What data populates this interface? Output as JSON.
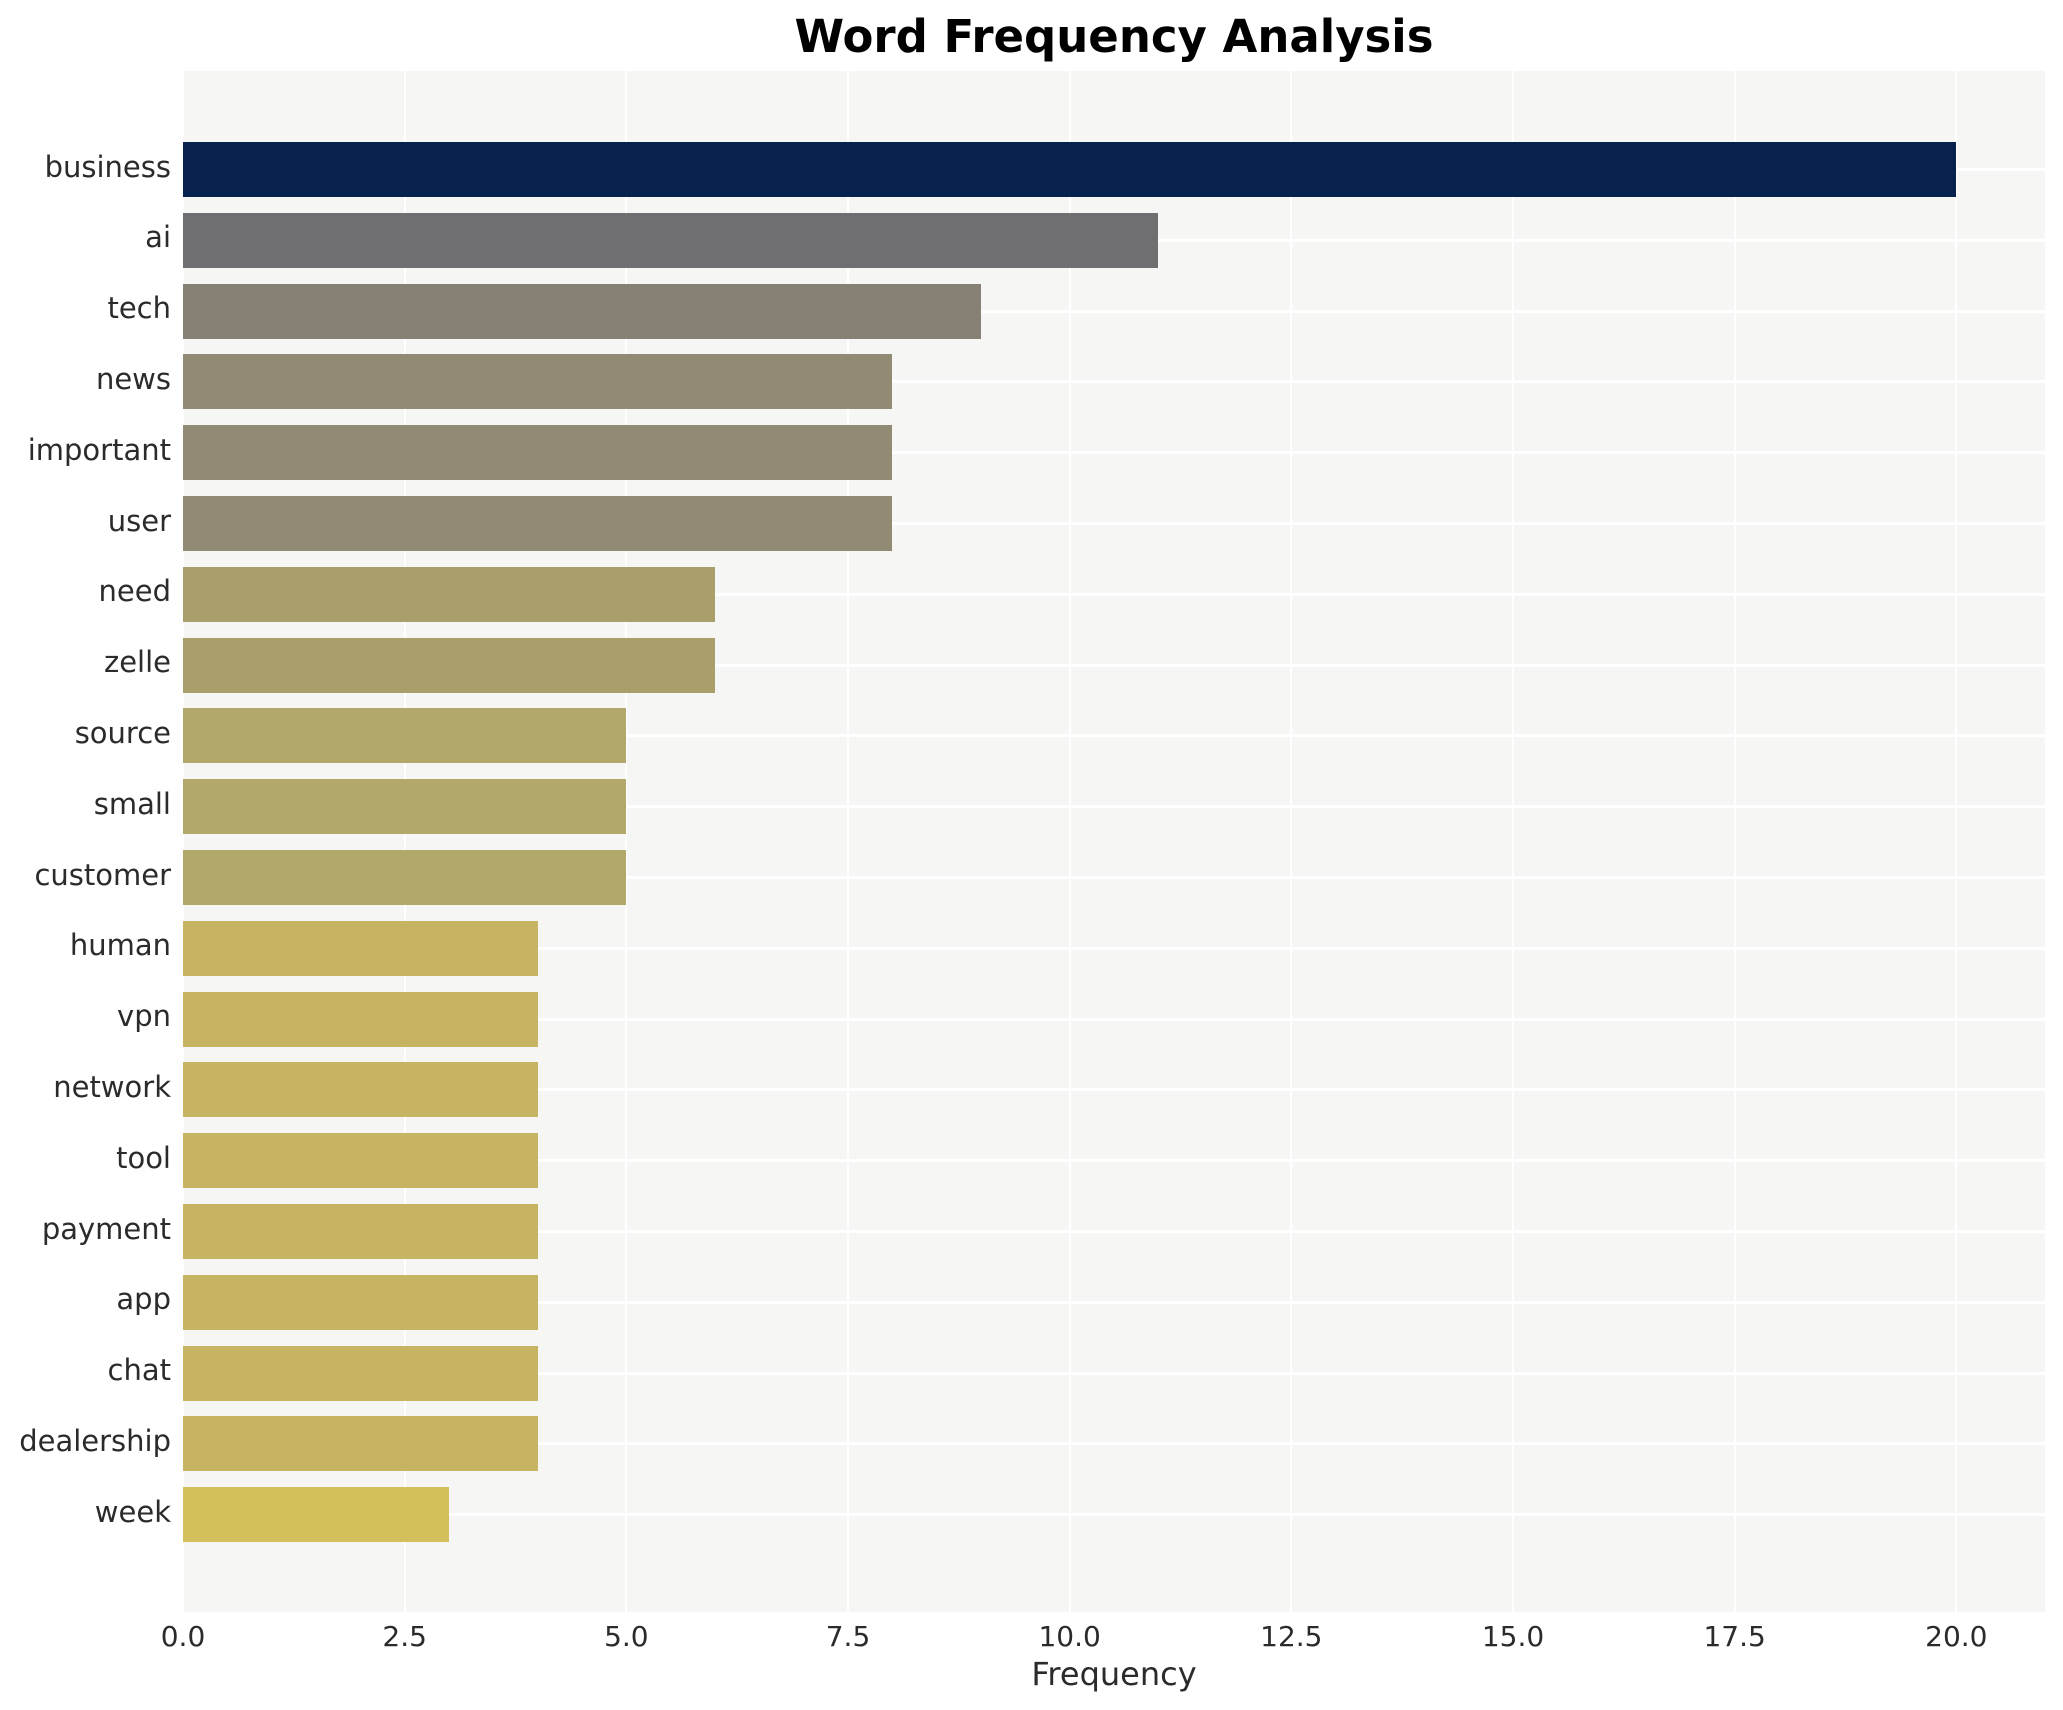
{
  "chart_data": {
    "type": "bar",
    "orientation": "horizontal",
    "title": "Word Frequency Analysis",
    "xlabel": "Frequency",
    "ylabel": "",
    "categories": [
      "business",
      "ai",
      "tech",
      "news",
      "important",
      "user",
      "need",
      "zelle",
      "source",
      "small",
      "customer",
      "human",
      "vpn",
      "network",
      "tool",
      "payment",
      "app",
      "chat",
      "dealership",
      "week"
    ],
    "values": [
      20,
      11,
      9,
      8,
      8,
      8,
      6,
      6,
      5,
      5,
      5,
      4,
      4,
      4,
      4,
      4,
      4,
      4,
      4,
      3
    ],
    "bar_colors": [
      "#06224D",
      "#6F6F72",
      "#868174",
      "#918B74",
      "#918B74",
      "#918B74",
      "#A99F6A",
      "#A99F6A",
      "#B2A86B",
      "#B2A86B",
      "#B2A86B",
      "#C6B463",
      "#C6B463",
      "#C6B463",
      "#C6B463",
      "#C6B463",
      "#C6B463",
      "#C6B463",
      "#C6B463",
      "#D3C05C"
    ],
    "xlim": [
      0,
      21
    ],
    "xticks": [
      0,
      2.5,
      5,
      7.5,
      10,
      12.5,
      15,
      17.5,
      20
    ],
    "xtick_labels": [
      "0.0",
      "2.5",
      "5.0",
      "7.5",
      "10.0",
      "12.5",
      "15.0",
      "17.5",
      "20.0"
    ],
    "grid": true,
    "legend": false,
    "colormap": "cividis",
    "plot_bg_color": "#F6F6F5",
    "grid_color": "#FFFFFF",
    "text_color": "#2b2b2b"
  }
}
